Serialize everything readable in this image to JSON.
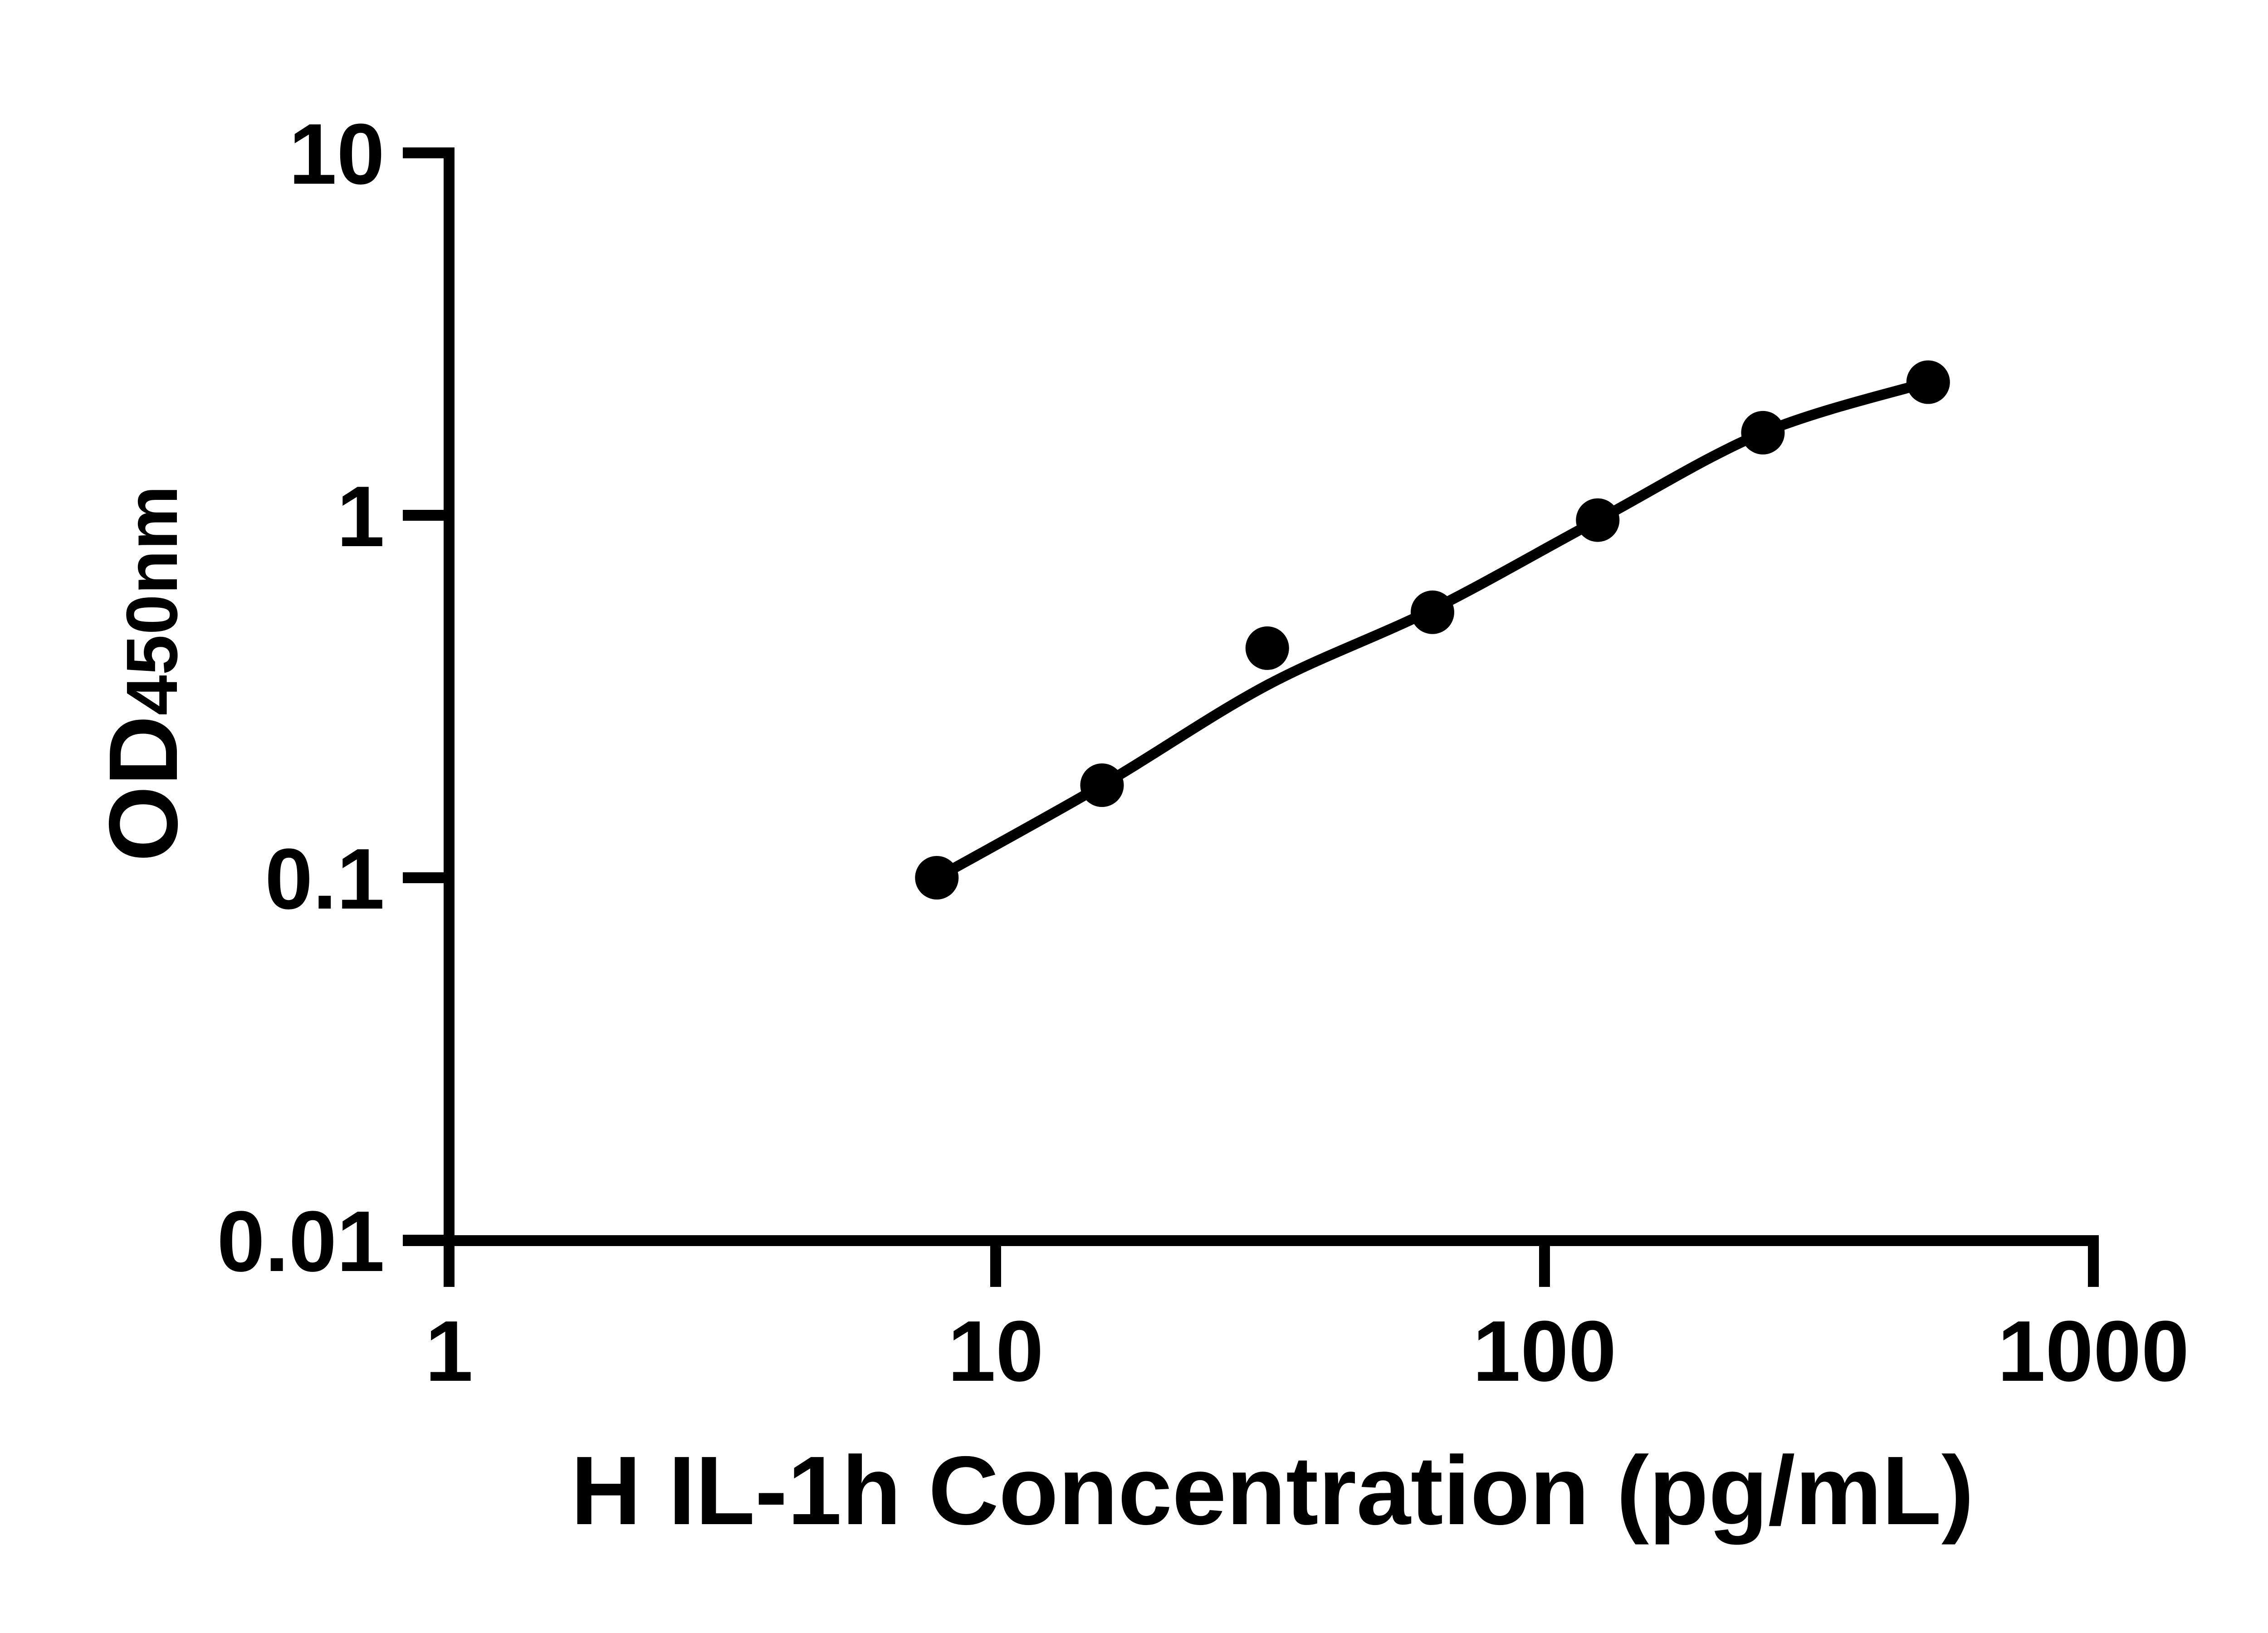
{
  "figure": {
    "background": "#ffffff",
    "ink_color": "#000000"
  },
  "axes": {
    "x": {
      "title": "H IL-1h Concentration (pg/mL)",
      "scale": "log",
      "range": [
        1,
        1000
      ],
      "ticks": [
        "1",
        "10",
        "100",
        "1000"
      ]
    },
    "y": {
      "title_main": "OD",
      "title_sub": "450nm",
      "scale": "log",
      "range": [
        0.01,
        10
      ],
      "ticks": [
        "10",
        "1",
        "0.1",
        "0.01"
      ]
    }
  },
  "chart_data": {
    "type": "scatter",
    "title": "",
    "xlabel": "H IL-1h Concentration (pg/mL)",
    "ylabel": "OD450nm",
    "x_scale": "log",
    "y_scale": "log",
    "xlim": [
      1,
      1000
    ],
    "ylim": [
      0.01,
      10
    ],
    "grid": false,
    "legend": false,
    "marker_color": "#000000",
    "line_color": "#000000",
    "points": {
      "x": [
        7.8125,
        15.625,
        31.25,
        62.5,
        125,
        250,
        500
      ],
      "y": [
        0.1,
        0.18,
        0.43,
        0.54,
        0.97,
        1.69,
        2.33
      ]
    },
    "fit_curve": {
      "x": [
        7.8125,
        15.625,
        31.25,
        62.5,
        125,
        250,
        500
      ],
      "y": [
        0.1,
        0.18,
        0.34,
        0.55,
        0.97,
        1.69,
        2.33
      ]
    }
  }
}
